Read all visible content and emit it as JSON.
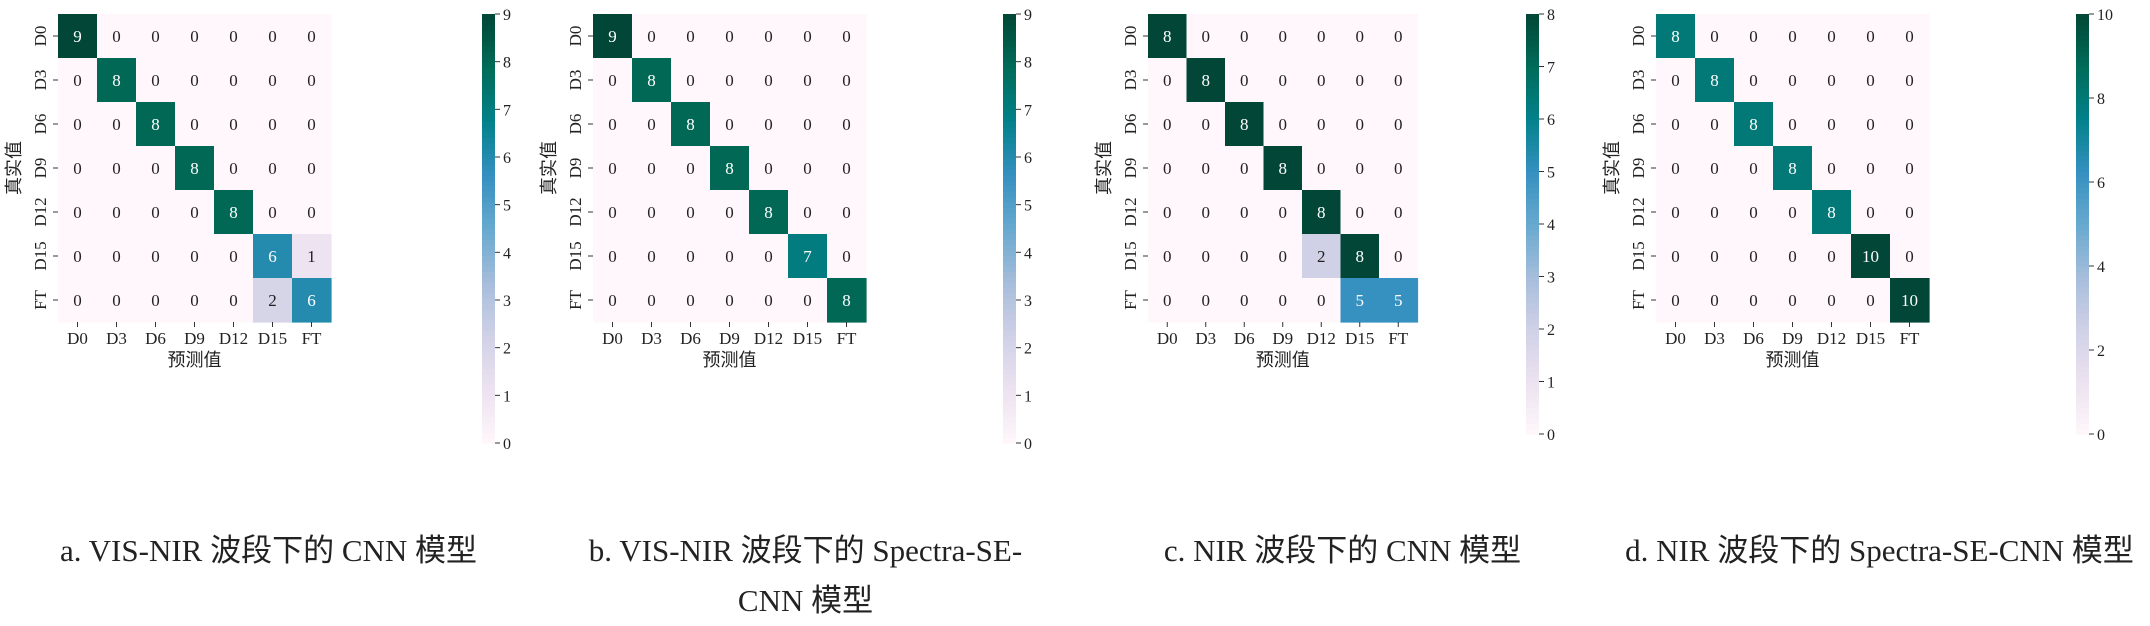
{
  "chart_data": [
    {
      "type": "heatmap",
      "title": "",
      "xlabel": "预测值",
      "ylabel": "真实值",
      "x_categories": [
        "D0",
        "D3",
        "D6",
        "D9",
        "D12",
        "D15",
        "FT"
      ],
      "y_categories": [
        "D0",
        "D3",
        "D6",
        "D9",
        "D12",
        "D15",
        "FT"
      ],
      "matrix": [
        [
          9,
          0,
          0,
          0,
          0,
          0,
          0
        ],
        [
          0,
          8,
          0,
          0,
          0,
          0,
          0
        ],
        [
          0,
          0,
          8,
          0,
          0,
          0,
          0
        ],
        [
          0,
          0,
          0,
          8,
          0,
          0,
          0
        ],
        [
          0,
          0,
          0,
          0,
          8,
          0,
          0
        ],
        [
          0,
          0,
          0,
          0,
          0,
          6,
          1
        ],
        [
          0,
          0,
          0,
          0,
          0,
          2,
          6
        ]
      ],
      "colorbar": {
        "min": 0,
        "max": 9,
        "ticks": [
          0,
          1,
          2,
          3,
          4,
          5,
          6,
          7,
          8,
          9
        ],
        "colormap": "PuBuGn"
      },
      "caption_lines": [
        "a. VIS-NIR 波段下的 CNN 模型"
      ]
    },
    {
      "type": "heatmap",
      "title": "",
      "xlabel": "预测值",
      "ylabel": "真实值",
      "x_categories": [
        "D0",
        "D3",
        "D6",
        "D9",
        "D12",
        "D15",
        "FT"
      ],
      "y_categories": [
        "D0",
        "D3",
        "D6",
        "D9",
        "D12",
        "D15",
        "FT"
      ],
      "matrix": [
        [
          9,
          0,
          0,
          0,
          0,
          0,
          0
        ],
        [
          0,
          8,
          0,
          0,
          0,
          0,
          0
        ],
        [
          0,
          0,
          8,
          0,
          0,
          0,
          0
        ],
        [
          0,
          0,
          0,
          8,
          0,
          0,
          0
        ],
        [
          0,
          0,
          0,
          0,
          8,
          0,
          0
        ],
        [
          0,
          0,
          0,
          0,
          0,
          7,
          0
        ],
        [
          0,
          0,
          0,
          0,
          0,
          0,
          8
        ]
      ],
      "colorbar": {
        "min": 0,
        "max": 9,
        "ticks": [
          0,
          1,
          2,
          3,
          4,
          5,
          6,
          7,
          8,
          9
        ],
        "colormap": "PuBuGn"
      },
      "caption_lines": [
        "b. VIS-NIR 波段下的 Spectra-SE-",
        "CNN 模型"
      ]
    },
    {
      "type": "heatmap",
      "title": "",
      "xlabel": "预测值",
      "ylabel": "真实值",
      "x_categories": [
        "D0",
        "D3",
        "D6",
        "D9",
        "D12",
        "D15",
        "FT"
      ],
      "y_categories": [
        "D0",
        "D3",
        "D6",
        "D9",
        "D12",
        "D15",
        "FT"
      ],
      "matrix": [
        [
          8,
          0,
          0,
          0,
          0,
          0,
          0
        ],
        [
          0,
          8,
          0,
          0,
          0,
          0,
          0
        ],
        [
          0,
          0,
          8,
          0,
          0,
          0,
          0
        ],
        [
          0,
          0,
          0,
          8,
          0,
          0,
          0
        ],
        [
          0,
          0,
          0,
          0,
          8,
          0,
          0
        ],
        [
          0,
          0,
          0,
          0,
          2,
          8,
          0
        ],
        [
          0,
          0,
          0,
          0,
          0,
          5,
          5
        ]
      ],
      "colorbar": {
        "min": 0,
        "max": 8,
        "ticks": [
          0,
          1,
          2,
          3,
          4,
          5,
          6,
          7,
          8
        ],
        "colormap": "PuBuGn"
      },
      "caption_lines": [
        "c. NIR 波段下的 CNN 模型"
      ]
    },
    {
      "type": "heatmap",
      "title": "",
      "xlabel": "预测值",
      "ylabel": "真实值",
      "x_categories": [
        "D0",
        "D3",
        "D6",
        "D9",
        "D12",
        "D15",
        "FT"
      ],
      "y_categories": [
        "D0",
        "D3",
        "D6",
        "D9",
        "D12",
        "D15",
        "FT"
      ],
      "matrix": [
        [
          8,
          0,
          0,
          0,
          0,
          0,
          0
        ],
        [
          0,
          8,
          0,
          0,
          0,
          0,
          0
        ],
        [
          0,
          0,
          8,
          0,
          0,
          0,
          0
        ],
        [
          0,
          0,
          0,
          8,
          0,
          0,
          0
        ],
        [
          0,
          0,
          0,
          0,
          8,
          0,
          0
        ],
        [
          0,
          0,
          0,
          0,
          0,
          10,
          0
        ],
        [
          0,
          0,
          0,
          0,
          0,
          0,
          10
        ]
      ],
      "colorbar": {
        "min": 0,
        "max": 10,
        "ticks": [
          0,
          2,
          4,
          6,
          8,
          10
        ],
        "colormap": "PuBuGn"
      },
      "caption_lines": [
        "d. NIR 波段下的 Spectra-SE-CNN 模型"
      ]
    }
  ]
}
